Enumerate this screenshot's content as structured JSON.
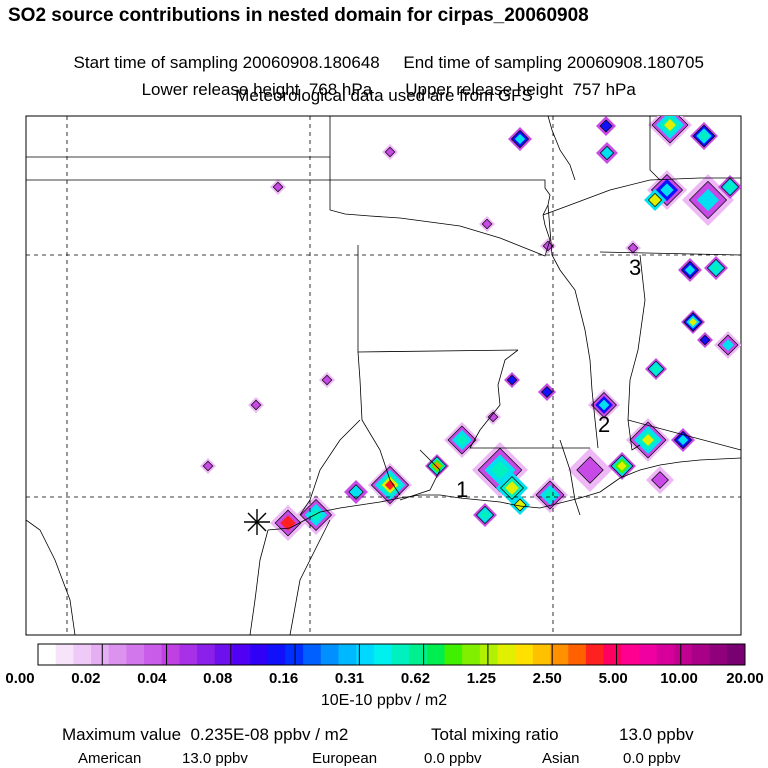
{
  "header": {
    "title": "SO2 source contributions in nested domain for cirpas_20060908",
    "start_label": "Start time of sampling 20060908.180648",
    "end_label": "End time of sampling 20060908.180705",
    "lower_label": "Lower release height  768 hPa",
    "upper_label": "Upper release height  757 hPa",
    "met_label": "Meteorological data used are from GFS"
  },
  "map": {
    "markers": [
      "1",
      "2",
      "3"
    ]
  },
  "colorbar": {
    "ticks": [
      "0.00",
      "0.02",
      "0.04",
      "0.08",
      "0.16",
      "0.31",
      "0.62",
      "1.25",
      "2.50",
      "5.00",
      "10.00",
      "20.00"
    ],
    "units": "10E-10 ppbv / m2",
    "colors": [
      "#ffffff",
      "#f7e4fb",
      "#efc9f7",
      "#e6aef3",
      "#dc92ef",
      "#d277ec",
      "#c95ce8",
      "#bf41e4",
      "#a830e6",
      "#8a20ea",
      "#6c10ee",
      "#5000f2",
      "#3000f6",
      "#1010fa",
      "#0030ff",
      "#0060ff",
      "#0090ff",
      "#00b8ff",
      "#00d8ff",
      "#00f0f0",
      "#00f0c0",
      "#00f090",
      "#00ee50",
      "#40f000",
      "#80f000",
      "#b0f000",
      "#e0f000",
      "#ffe000",
      "#ffc000",
      "#ff9000",
      "#ff6000",
      "#ff2020",
      "#ff0060",
      "#ff0090",
      "#f000a0",
      "#d8009a",
      "#c00090",
      "#a80086",
      "#90007c",
      "#780070"
    ]
  },
  "stats": {
    "max_label": "Maximum value  0.235E-08 ppbv / m2",
    "total_label": "Total mixing ratio",
    "total_value": "13.0 ppbv",
    "american_label": "American",
    "american_value": "13.0 ppbv",
    "european_label": "European",
    "european_value": "0.0 ppbv",
    "asian_label": "Asian",
    "asian_value": "0.0 ppbv"
  }
}
